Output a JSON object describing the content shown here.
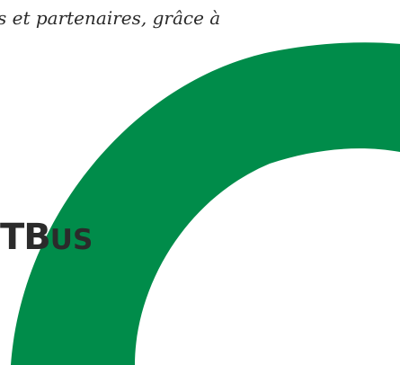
{
  "intro": {
    "text": "s et partenaires, grâce à"
  },
  "brand": {
    "big_letter": "B",
    "small_letters": "US",
    "leading_fragment": "T"
  },
  "colors": {
    "arc": "#008c4a",
    "text": "#2a2a2a",
    "background": "#ffffff"
  }
}
